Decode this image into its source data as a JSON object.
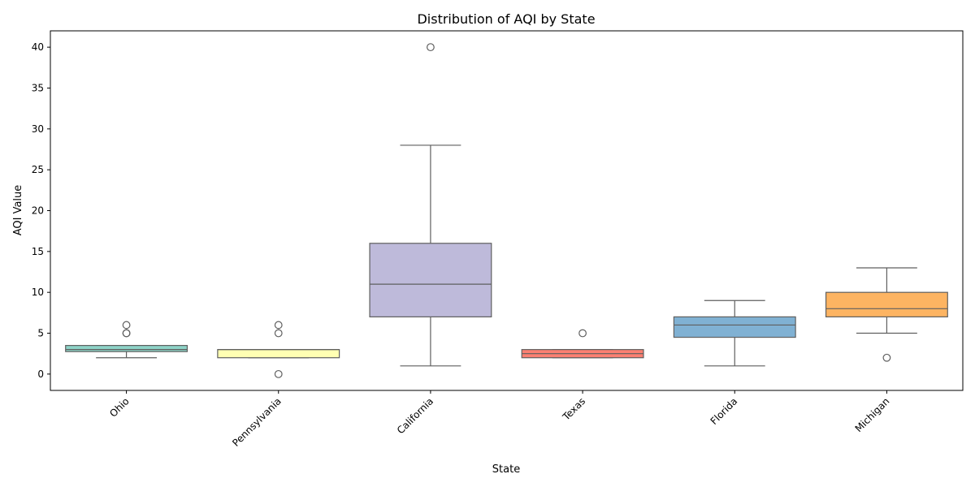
{
  "chart_data": {
    "type": "box",
    "title": "Distribution of AQI by State",
    "xlabel": "State",
    "ylabel": "AQI Value",
    "ylim": [
      -2,
      42
    ],
    "yticks": [
      0,
      5,
      10,
      15,
      20,
      25,
      30,
      35,
      40
    ],
    "grid": false,
    "legend": "none",
    "categories": [
      "Ohio",
      "Pennsylvania",
      "California",
      "Texas",
      "Florida",
      "Michigan"
    ],
    "boxes": [
      {
        "category": "Ohio",
        "color": "#8dd3c7",
        "whisker_low": 2,
        "q1": 2.75,
        "median": 3,
        "q3": 3.5,
        "whisker_high": 3.5,
        "outliers": [
          5,
          5,
          6
        ]
      },
      {
        "category": "Pennsylvania",
        "color": "#ffffb3",
        "whisker_low": 2,
        "q1": 2,
        "median": 3,
        "q3": 3,
        "whisker_high": 3,
        "outliers": [
          0,
          5,
          6
        ]
      },
      {
        "category": "California",
        "color": "#bebada",
        "whisker_low": 1,
        "q1": 7,
        "median": 11,
        "q3": 16,
        "whisker_high": 28,
        "outliers": [
          40
        ]
      },
      {
        "category": "Texas",
        "color": "#fb8072",
        "whisker_low": 2,
        "q1": 2,
        "median": 2.5,
        "q3": 3,
        "whisker_high": 3,
        "outliers": [
          5
        ]
      },
      {
        "category": "Florida",
        "color": "#80b1d3",
        "whisker_low": 1,
        "q1": 4.5,
        "median": 6,
        "q3": 7,
        "whisker_high": 9,
        "outliers": []
      },
      {
        "category": "Michigan",
        "color": "#fdb462",
        "whisker_low": 5,
        "q1": 7,
        "median": 8,
        "q3": 10,
        "whisker_high": 13,
        "outliers": [
          2
        ]
      }
    ]
  }
}
